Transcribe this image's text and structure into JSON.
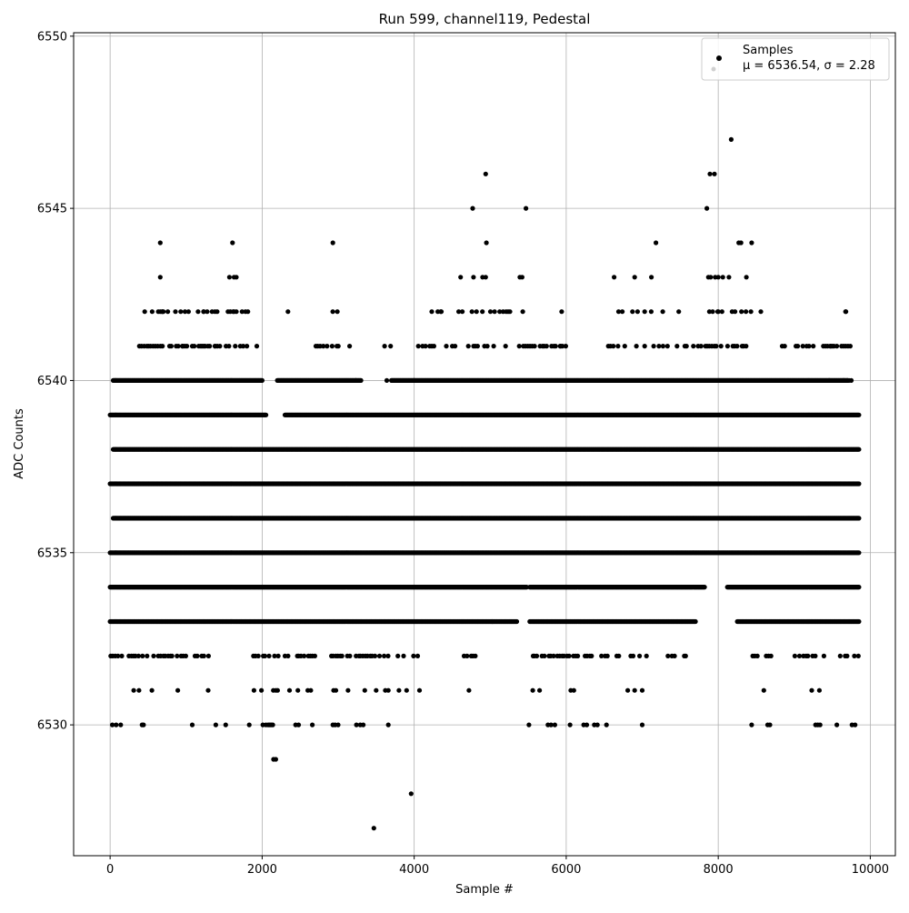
{
  "chart_data": {
    "type": "scatter",
    "title": "Run 599, channel119, Pedestal",
    "xlabel": "Sample #",
    "ylabel": "ADC Counts",
    "xlim": [
      -480,
      10330
    ],
    "ylim": [
      6526.2,
      6550.1
    ],
    "xticks": [
      0,
      2000,
      4000,
      6000,
      8000,
      10000
    ],
    "yticks": [
      6530,
      6535,
      6540,
      6545,
      6550
    ],
    "grid": true,
    "legend_position": "top-right",
    "marker_color": "#000000",
    "series": [
      {
        "name": "Samples",
        "stats_label": "μ = 6536.54, σ = 2.28",
        "bands": [
          {
            "y": 6533,
            "ranges": [
              [
                0,
                5350
              ],
              [
                5520,
                7700
              ],
              [
                8250,
                9850
              ]
            ]
          },
          {
            "y": 6534,
            "ranges": [
              [
                0,
                5480
              ],
              [
                5520,
                7820
              ],
              [
                8120,
                9850
              ]
            ]
          },
          {
            "y": 6535,
            "ranges": [
              [
                0,
                9850
              ]
            ]
          },
          {
            "y": 6536,
            "ranges": [
              [
                40,
                9850
              ]
            ]
          },
          {
            "y": 6537,
            "ranges": [
              [
                0,
                9850
              ]
            ]
          },
          {
            "y": 6538,
            "ranges": [
              [
                40,
                9850
              ]
            ]
          },
          {
            "y": 6539,
            "ranges": [
              [
                0,
                2050
              ],
              [
                2300,
                9850
              ]
            ]
          },
          {
            "y": 6540,
            "ranges": [
              [
                40,
                2000
              ],
              [
                2200,
                3300
              ],
              [
                3700,
                9700
              ]
            ]
          }
        ],
        "sparse_bands": [
          {
            "y": 6532,
            "ranges": [
              [
                0,
                1500
              ],
              [
                1850,
                2700
              ],
              [
                2900,
                4100
              ],
              [
                4650,
                4800
              ],
              [
                5550,
                7100
              ],
              [
                7300,
                7600
              ],
              [
                8450,
                8700
              ],
              [
                9000,
                9850
              ]
            ],
            "step": 30
          },
          {
            "y": 6541,
            "ranges": [
              [
                380,
                1800
              ],
              [
                2700,
                3000
              ],
              [
                3600,
                3700
              ],
              [
                4050,
                5600
              ],
              [
                5650,
                6000
              ],
              [
                6550,
                7500
              ],
              [
                7550,
                8450
              ],
              [
                8800,
                9750
              ]
            ],
            "step": 30
          },
          {
            "y": 6542,
            "ranges": [
              [
                250,
                1400
              ],
              [
                1550,
                1800
              ],
              [
                2900,
                2960
              ],
              [
                4150,
                5450
              ],
              [
                6550,
                7200
              ],
              [
                7800,
                8500
              ],
              [
                9100,
                9250
              ],
              [
                9600,
                9700
              ]
            ],
            "step": 60
          },
          {
            "y": 6531,
            "ranges": [
              [
                1850,
                2200
              ]
            ],
            "step": 35
          }
        ],
        "points": [
          [
            30,
            6530
          ],
          [
            80,
            6530
          ],
          [
            140,
            6530
          ],
          [
            420,
            6530
          ],
          [
            440,
            6530
          ],
          [
            1080,
            6530
          ],
          [
            1390,
            6530
          ],
          [
            1520,
            6530
          ],
          [
            1830,
            6530
          ],
          [
            2010,
            6530
          ],
          [
            2050,
            6530
          ],
          [
            2080,
            6530
          ],
          [
            2100,
            6530
          ],
          [
            2120,
            6530
          ],
          [
            2140,
            6530
          ],
          [
            2440,
            6530
          ],
          [
            2480,
            6530
          ],
          [
            2660,
            6530
          ],
          [
            2930,
            6530
          ],
          [
            2960,
            6530
          ],
          [
            3000,
            6530
          ],
          [
            3240,
            6530
          ],
          [
            3290,
            6530
          ],
          [
            3330,
            6530
          ],
          [
            3660,
            6530
          ],
          [
            5510,
            6530
          ],
          [
            5760,
            6530
          ],
          [
            5800,
            6530
          ],
          [
            5850,
            6530
          ],
          [
            6050,
            6530
          ],
          [
            6230,
            6530
          ],
          [
            6270,
            6530
          ],
          [
            6370,
            6530
          ],
          [
            6410,
            6530
          ],
          [
            6530,
            6530
          ],
          [
            7000,
            6530
          ],
          [
            8440,
            6530
          ],
          [
            8650,
            6530
          ],
          [
            8680,
            6530
          ],
          [
            9280,
            6530
          ],
          [
            9310,
            6530
          ],
          [
            9340,
            6530
          ],
          [
            9560,
            6530
          ],
          [
            9760,
            6530
          ],
          [
            9800,
            6530
          ],
          [
            310,
            6531
          ],
          [
            380,
            6531
          ],
          [
            550,
            6531
          ],
          [
            890,
            6531
          ],
          [
            1290,
            6531
          ],
          [
            2360,
            6531
          ],
          [
            2470,
            6531
          ],
          [
            2600,
            6531
          ],
          [
            2640,
            6531
          ],
          [
            2940,
            6531
          ],
          [
            2970,
            6531
          ],
          [
            3130,
            6531
          ],
          [
            3350,
            6531
          ],
          [
            3500,
            6531
          ],
          [
            3620,
            6531
          ],
          [
            3660,
            6531
          ],
          [
            3800,
            6531
          ],
          [
            3900,
            6531
          ],
          [
            4070,
            6531
          ],
          [
            4720,
            6531
          ],
          [
            5560,
            6531
          ],
          [
            5650,
            6531
          ],
          [
            6060,
            6531
          ],
          [
            6100,
            6531
          ],
          [
            6810,
            6531
          ],
          [
            6900,
            6531
          ],
          [
            7000,
            6531
          ],
          [
            8600,
            6531
          ],
          [
            9230,
            6531
          ],
          [
            9330,
            6531
          ],
          [
            2150,
            6529
          ],
          [
            2180,
            6529
          ],
          [
            3470,
            6527
          ],
          [
            3960,
            6528
          ],
          [
            5030,
            6533
          ],
          [
            660,
            6543
          ],
          [
            1570,
            6543
          ],
          [
            1630,
            6543
          ],
          [
            1660,
            6543
          ],
          [
            4610,
            6543
          ],
          [
            4780,
            6543
          ],
          [
            4900,
            6543
          ],
          [
            4940,
            6543
          ],
          [
            5390,
            6543
          ],
          [
            5420,
            6543
          ],
          [
            6630,
            6543
          ],
          [
            6900,
            6543
          ],
          [
            7120,
            6543
          ],
          [
            7870,
            6543
          ],
          [
            7900,
            6543
          ],
          [
            7960,
            6543
          ],
          [
            8000,
            6543
          ],
          [
            8060,
            6543
          ],
          [
            8140,
            6543
          ],
          [
            8370,
            6543
          ],
          [
            660,
            6544
          ],
          [
            1610,
            6544
          ],
          [
            2930,
            6544
          ],
          [
            4950,
            6544
          ],
          [
            7180,
            6544
          ],
          [
            8270,
            6544
          ],
          [
            8300,
            6544
          ],
          [
            8440,
            6544
          ],
          [
            4770,
            6545
          ],
          [
            5470,
            6545
          ],
          [
            7850,
            6545
          ],
          [
            4940,
            6546
          ],
          [
            7890,
            6546
          ],
          [
            7950,
            6546
          ],
          [
            8170,
            6547
          ],
          [
            660,
            6542
          ],
          [
            690,
            6542
          ],
          [
            700,
            6542
          ],
          [
            1230,
            6542
          ],
          [
            1380,
            6542
          ],
          [
            1580,
            6542
          ],
          [
            1630,
            6542
          ],
          [
            1660,
            6542
          ],
          [
            1780,
            6542
          ],
          [
            2340,
            6542
          ],
          [
            5940,
            6542
          ],
          [
            7270,
            6542
          ],
          [
            7480,
            6542
          ],
          [
            8000,
            6542
          ],
          [
            8050,
            6542
          ],
          [
            8430,
            6542
          ],
          [
            8560,
            6542
          ],
          [
            9680,
            6542
          ],
          [
            950,
            6541
          ],
          [
            1010,
            6541
          ],
          [
            1210,
            6541
          ],
          [
            1380,
            6541
          ],
          [
            1410,
            6541
          ],
          [
            1750,
            6541
          ],
          [
            1930,
            6541
          ],
          [
            3150,
            6541
          ],
          [
            5860,
            6541
          ],
          [
            5920,
            6541
          ],
          [
            5950,
            6541
          ],
          [
            9250,
            6541
          ],
          [
            9480,
            6541
          ],
          [
            9560,
            6541
          ],
          [
            3230,
            6540
          ],
          [
            3640,
            6540
          ],
          [
            4000,
            6540
          ],
          [
            9460,
            6540
          ],
          [
            9650,
            6540
          ],
          [
            9700,
            6540
          ],
          [
            9720,
            6540
          ],
          [
            9750,
            6540
          ],
          [
            5170,
            6542
          ],
          [
            5210,
            6542
          ],
          [
            5260,
            6542
          ],
          [
            4310,
            6542
          ],
          [
            4350,
            6542
          ]
        ]
      }
    ]
  }
}
